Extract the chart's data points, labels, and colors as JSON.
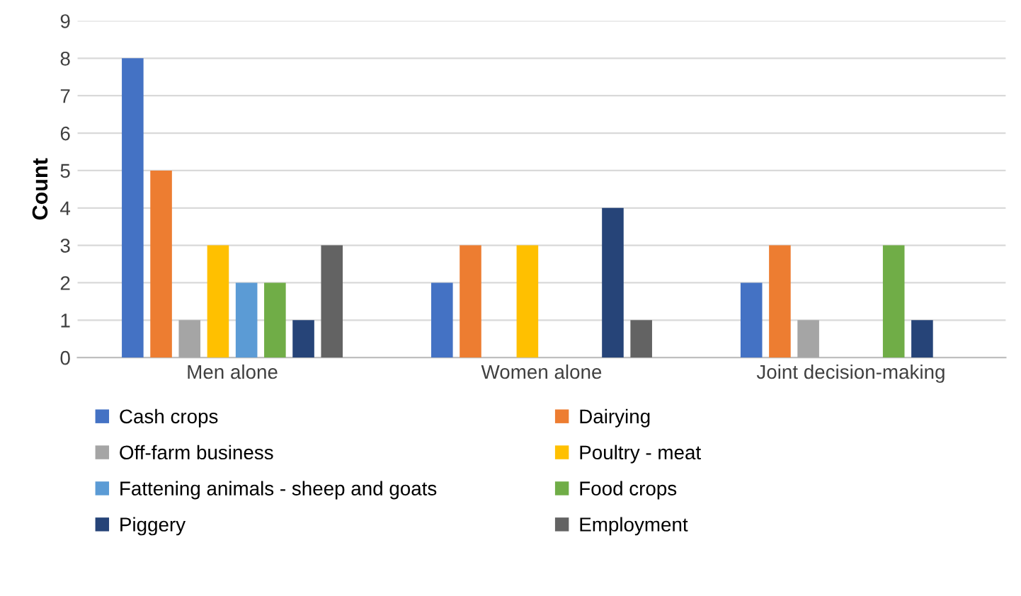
{
  "chart_data": {
    "type": "bar",
    "ylabel": "Count",
    "categories": [
      "Men alone",
      "Women alone",
      "Joint decision-making"
    ],
    "series": [
      {
        "name": "Cash crops",
        "color": "#4472c4",
        "values": [
          8,
          2,
          2
        ]
      },
      {
        "name": "Dairying",
        "color": "#ed7d31",
        "values": [
          5,
          3,
          3
        ]
      },
      {
        "name": "Off-farm business",
        "color": "#a5a5a5",
        "values": [
          1,
          0,
          1
        ]
      },
      {
        "name": "Poultry - meat",
        "color": "#ffc000",
        "values": [
          3,
          3,
          0
        ]
      },
      {
        "name": "Fattening animals - sheep and goats",
        "color": "#5b9bd5",
        "values": [
          2,
          0,
          0
        ]
      },
      {
        "name": "Food crops",
        "color": "#70ad47",
        "values": [
          2,
          0,
          3
        ]
      },
      {
        "name": "Piggery",
        "color": "#264478",
        "values": [
          1,
          4,
          1
        ]
      },
      {
        "name": "Employment",
        "color": "#636363",
        "values": [
          3,
          1,
          0
        ]
      }
    ],
    "ylim": [
      0,
      9
    ],
    "yticks": [
      0,
      1,
      2,
      3,
      4,
      5,
      6,
      7,
      8,
      9
    ],
    "grid": "y",
    "legend": "bottom"
  }
}
